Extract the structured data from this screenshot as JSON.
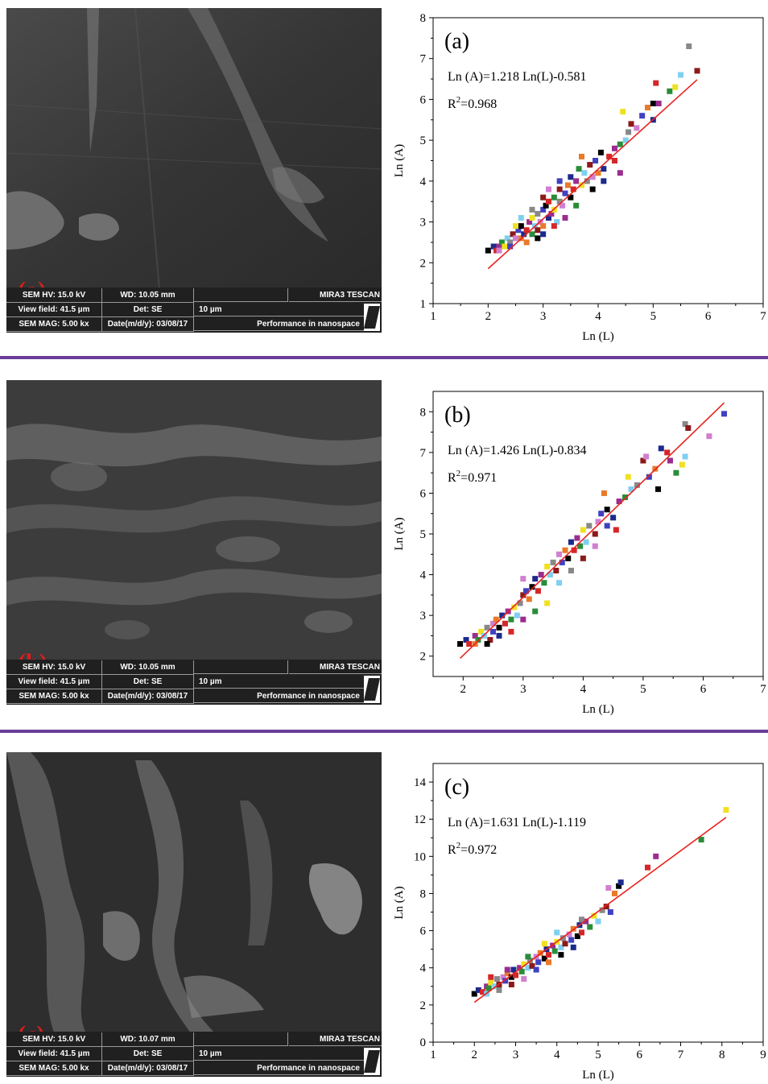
{
  "panels": [
    {
      "letter": "(a)",
      "sem": {
        "hv": "SEM HV: 15.0 kV",
        "wd": "WD: 10.05 mm",
        "brand": "MIRA3 TESCAN",
        "view_field": "View field: 41.5 µm",
        "det": "Det: SE",
        "scale": "10 µm",
        "mag": "SEM MAG: 5.00 kx",
        "date": "Date(m/d/y): 03/08/17",
        "slogan": "Performance in nanospace"
      }
    },
    {
      "letter": "(b)",
      "sem": {
        "hv": "SEM HV: 15.0 kV",
        "wd": "WD: 10.05 mm",
        "brand": "MIRA3 TESCAN",
        "view_field": "View field: 41.5 µm",
        "det": "Det: SE",
        "scale": "10 µm",
        "mag": "SEM MAG: 5.00 kx",
        "date": "Date(m/d/y): 03/08/17",
        "slogan": "Performance in nanospace"
      }
    },
    {
      "letter": "(c)",
      "sem": {
        "hv": "SEM HV: 15.0 kV",
        "wd": "WD: 10.07 mm",
        "brand": "MIRA3 TESCAN",
        "view_field": "View field: 41.5 µm",
        "det": "Det: SE",
        "scale": "10 µm",
        "mag": "SEM MAG: 5.00 kx",
        "date": "Date(m/d/y): 03/08/17",
        "slogan": "Performance in nanospace"
      }
    }
  ],
  "chart_data": [
    {
      "type": "scatter",
      "label": "(a)",
      "xlabel": "Ln (L)",
      "ylabel": "Ln (A)",
      "xlim": [
        1,
        7
      ],
      "ylim": [
        1,
        8
      ],
      "xticks": [
        "1",
        "2",
        "3",
        "4",
        "5",
        "6",
        "7"
      ],
      "yticks": [
        "1",
        "2",
        "3",
        "4",
        "5",
        "6",
        "7",
        "8"
      ],
      "equation": "Ln (A)=1.218 Ln(L)-0.581",
      "r2_prefix": "R",
      "r2_sup": "2",
      "r2_value": "=0.968",
      "fit": {
        "slope": 1.218,
        "intercept": -0.581,
        "x_range": [
          2.0,
          5.8
        ],
        "color": "#e8231f"
      },
      "marker_colors": [
        "#000000",
        "#1c2a8c",
        "#d62728",
        "#9b2d8e",
        "#2a8c3a",
        "#f0e020",
        "#7fd0f0",
        "#888888",
        "#8b1a1a",
        "#d080d0",
        "#4040c0",
        "#e87a2a"
      ],
      "points": [
        [
          2.0,
          2.3
        ],
        [
          2.1,
          2.4
        ],
        [
          2.15,
          2.3
        ],
        [
          2.2,
          2.4
        ],
        [
          2.25,
          2.5
        ],
        [
          2.3,
          2.4
        ],
        [
          2.35,
          2.6
        ],
        [
          2.4,
          2.5
        ],
        [
          2.45,
          2.7
        ],
        [
          2.5,
          2.6
        ],
        [
          2.55,
          2.8
        ],
        [
          2.6,
          2.6
        ],
        [
          2.6,
          2.9
        ],
        [
          2.65,
          2.7
        ],
        [
          2.7,
          2.8
        ],
        [
          2.75,
          3.0
        ],
        [
          2.8,
          2.7
        ],
        [
          2.8,
          3.1
        ],
        [
          2.85,
          2.9
        ],
        [
          2.9,
          3.2
        ],
        [
          2.9,
          2.8
        ],
        [
          2.95,
          3.0
        ],
        [
          3.0,
          3.3
        ],
        [
          3.0,
          2.9
        ],
        [
          3.05,
          3.4
        ],
        [
          3.1,
          3.1
        ],
        [
          3.1,
          3.5
        ],
        [
          3.15,
          3.2
        ],
        [
          3.2,
          3.6
        ],
        [
          3.2,
          3.3
        ],
        [
          3.25,
          3.0
        ],
        [
          3.3,
          3.5
        ],
        [
          3.3,
          3.8
        ],
        [
          3.35,
          3.4
        ],
        [
          3.4,
          3.7
        ],
        [
          3.45,
          3.9
        ],
        [
          3.5,
          3.6
        ],
        [
          3.5,
          4.1
        ],
        [
          3.55,
          3.8
        ],
        [
          3.6,
          4.0
        ],
        [
          3.65,
          4.3
        ],
        [
          3.7,
          3.9
        ],
        [
          3.75,
          4.2
        ],
        [
          3.8,
          4.0
        ],
        [
          3.85,
          4.4
        ],
        [
          3.9,
          4.1
        ],
        [
          3.95,
          4.5
        ],
        [
          4.0,
          4.2
        ],
        [
          4.05,
          4.7
        ],
        [
          4.1,
          4.3
        ],
        [
          4.2,
          4.6
        ],
        [
          4.3,
          4.8
        ],
        [
          4.4,
          4.9
        ],
        [
          4.45,
          5.7
        ],
        [
          4.5,
          5.0
        ],
        [
          4.55,
          5.2
        ],
        [
          4.6,
          5.4
        ],
        [
          4.7,
          5.3
        ],
        [
          4.8,
          5.6
        ],
        [
          4.9,
          5.8
        ],
        [
          5.0,
          5.9
        ],
        [
          5.0,
          5.5
        ],
        [
          5.05,
          6.4
        ],
        [
          5.1,
          5.9
        ],
        [
          5.3,
          6.2
        ],
        [
          5.4,
          6.3
        ],
        [
          5.5,
          6.6
        ],
        [
          5.65,
          7.3
        ],
        [
          5.8,
          6.7
        ],
        [
          2.2,
          2.3
        ],
        [
          2.4,
          2.4
        ],
        [
          2.7,
          2.5
        ],
        [
          2.9,
          2.6
        ],
        [
          3.0,
          2.7
        ],
        [
          3.2,
          2.9
        ],
        [
          3.4,
          3.1
        ],
        [
          3.6,
          3.4
        ],
        [
          2.5,
          2.9
        ],
        [
          2.6,
          3.1
        ],
        [
          2.8,
          3.3
        ],
        [
          3.0,
          3.6
        ],
        [
          3.1,
          3.8
        ],
        [
          3.3,
          4.0
        ],
        [
          3.7,
          4.6
        ],
        [
          3.9,
          3.8
        ],
        [
          4.1,
          4.0
        ],
        [
          4.3,
          4.5
        ],
        [
          4.4,
          4.2
        ]
      ]
    },
    {
      "type": "scatter",
      "label": "(b)",
      "xlabel": "Ln (L)",
      "ylabel": "Ln (A)",
      "xlim": [
        1.5,
        7
      ],
      "ylim": [
        1.5,
        8.5
      ],
      "xticks": [
        "2",
        "3",
        "4",
        "5",
        "6",
        "7"
      ],
      "yticks": [
        "2",
        "3",
        "4",
        "5",
        "6",
        "7",
        "8"
      ],
      "equation": "Ln (A)=1.426 Ln(L)-0.834",
      "r2_prefix": "R",
      "r2_sup": "2",
      "r2_value": "=0.971",
      "fit": {
        "slope": 1.426,
        "intercept": -0.834,
        "x_range": [
          1.95,
          6.35
        ],
        "color": "#e8231f"
      },
      "marker_colors": [
        "#000000",
        "#1c2a8c",
        "#d62728",
        "#9b2d8e",
        "#2a8c3a",
        "#f0e020",
        "#7fd0f0",
        "#888888",
        "#8b1a1a",
        "#d080d0",
        "#4040c0",
        "#e87a2a"
      ],
      "points": [
        [
          1.95,
          2.3
        ],
        [
          2.05,
          2.4
        ],
        [
          2.1,
          2.3
        ],
        [
          2.2,
          2.5
        ],
        [
          2.25,
          2.4
        ],
        [
          2.3,
          2.6
        ],
        [
          2.35,
          2.5
        ],
        [
          2.4,
          2.7
        ],
        [
          2.45,
          2.4
        ],
        [
          2.5,
          2.8
        ],
        [
          2.5,
          2.6
        ],
        [
          2.55,
          2.9
        ],
        [
          2.6,
          2.7
        ],
        [
          2.65,
          3.0
        ],
        [
          2.7,
          2.8
        ],
        [
          2.75,
          3.1
        ],
        [
          2.8,
          2.9
        ],
        [
          2.85,
          3.2
        ],
        [
          2.9,
          3.0
        ],
        [
          2.95,
          3.3
        ],
        [
          3.0,
          3.5
        ],
        [
          3.0,
          3.9
        ],
        [
          3.05,
          3.6
        ],
        [
          3.1,
          3.4
        ],
        [
          3.15,
          3.7
        ],
        [
          3.2,
          3.9
        ],
        [
          3.25,
          3.6
        ],
        [
          3.3,
          4.0
        ],
        [
          3.35,
          3.8
        ],
        [
          3.4,
          4.2
        ],
        [
          3.45,
          4.0
        ],
        [
          3.5,
          4.3
        ],
        [
          3.55,
          4.1
        ],
        [
          3.6,
          4.5
        ],
        [
          3.65,
          4.3
        ],
        [
          3.7,
          4.6
        ],
        [
          3.75,
          4.4
        ],
        [
          3.8,
          4.8
        ],
        [
          3.85,
          4.6
        ],
        [
          3.9,
          4.9
        ],
        [
          3.95,
          4.7
        ],
        [
          4.0,
          5.1
        ],
        [
          4.05,
          4.8
        ],
        [
          4.1,
          5.2
        ],
        [
          4.2,
          5.0
        ],
        [
          4.25,
          5.3
        ],
        [
          4.3,
          5.5
        ],
        [
          4.35,
          6.0
        ],
        [
          4.4,
          5.6
        ],
        [
          4.5,
          5.4
        ],
        [
          4.55,
          5.1
        ],
        [
          4.6,
          5.8
        ],
        [
          4.7,
          5.9
        ],
        [
          4.75,
          6.4
        ],
        [
          4.8,
          6.1
        ],
        [
          4.9,
          6.2
        ],
        [
          5.0,
          6.8
        ],
        [
          5.05,
          6.9
        ],
        [
          5.1,
          6.4
        ],
        [
          5.2,
          6.6
        ],
        [
          5.25,
          6.1
        ],
        [
          5.3,
          7.1
        ],
        [
          5.4,
          7.0
        ],
        [
          5.45,
          6.8
        ],
        [
          5.55,
          6.5
        ],
        [
          5.65,
          6.7
        ],
        [
          5.7,
          6.9
        ],
        [
          5.7,
          7.7
        ],
        [
          5.75,
          7.6
        ],
        [
          6.1,
          7.4
        ],
        [
          6.35,
          7.95
        ],
        [
          2.2,
          2.3
        ],
        [
          2.4,
          2.3
        ],
        [
          2.6,
          2.5
        ],
        [
          2.8,
          2.6
        ],
        [
          3.0,
          2.9
        ],
        [
          3.2,
          3.1
        ],
        [
          3.4,
          3.3
        ],
        [
          3.6,
          3.8
        ],
        [
          3.8,
          4.1
        ],
        [
          4.0,
          4.4
        ],
        [
          4.2,
          4.7
        ],
        [
          4.4,
          5.2
        ]
      ]
    },
    {
      "type": "scatter",
      "label": "(c)",
      "xlabel": "Ln (L)",
      "ylabel": "Ln (A)",
      "xlim": [
        1,
        9
      ],
      "ylim": [
        0,
        15
      ],
      "xticks": [
        "1",
        "2",
        "3",
        "4",
        "5",
        "6",
        "7",
        "8",
        "9"
      ],
      "yticks": [
        "0",
        "2",
        "4",
        "6",
        "8",
        "10",
        "12",
        "14"
      ],
      "equation": "Ln (A)=1.631 Ln(L)-1.119",
      "r2_prefix": "R",
      "r2_sup": "2",
      "r2_value": "=0.972",
      "fit": {
        "slope": 1.631,
        "intercept": -1.119,
        "x_range": [
          2.0,
          8.1
        ],
        "color": "#e8231f"
      },
      "marker_colors": [
        "#000000",
        "#1c2a8c",
        "#d62728",
        "#9b2d8e",
        "#2a8c3a",
        "#f0e020",
        "#7fd0f0",
        "#888888",
        "#8b1a1a",
        "#d080d0",
        "#4040c0",
        "#e87a2a"
      ],
      "points": [
        [
          2.0,
          2.6
        ],
        [
          2.1,
          2.8
        ],
        [
          2.2,
          2.7
        ],
        [
          2.3,
          3.0
        ],
        [
          2.35,
          2.9
        ],
        [
          2.4,
          3.2
        ],
        [
          2.5,
          3.0
        ],
        [
          2.55,
          3.4
        ],
        [
          2.6,
          3.1
        ],
        [
          2.7,
          3.5
        ],
        [
          2.75,
          3.3
        ],
        [
          2.8,
          3.7
        ],
        [
          2.9,
          3.5
        ],
        [
          2.95,
          3.9
        ],
        [
          3.0,
          3.6
        ],
        [
          3.1,
          4.0
        ],
        [
          3.15,
          3.8
        ],
        [
          3.2,
          4.2
        ],
        [
          3.3,
          4.0
        ],
        [
          3.35,
          4.4
        ],
        [
          3.4,
          4.1
        ],
        [
          3.5,
          4.6
        ],
        [
          3.55,
          4.3
        ],
        [
          3.6,
          4.8
        ],
        [
          3.7,
          4.5
        ],
        [
          3.75,
          5.0
        ],
        [
          3.8,
          4.7
        ],
        [
          3.9,
          5.2
        ],
        [
          3.95,
          4.9
        ],
        [
          4.0,
          5.4
        ],
        [
          4.1,
          5.1
        ],
        [
          4.15,
          5.6
        ],
        [
          4.2,
          5.3
        ],
        [
          4.3,
          5.8
        ],
        [
          4.35,
          5.5
        ],
        [
          4.4,
          6.1
        ],
        [
          4.5,
          5.7
        ],
        [
          4.55,
          6.3
        ],
        [
          4.6,
          5.9
        ],
        [
          4.7,
          6.5
        ],
        [
          4.8,
          6.2
        ],
        [
          4.9,
          6.8
        ],
        [
          5.0,
          6.5
        ],
        [
          5.1,
          7.1
        ],
        [
          5.2,
          7.3
        ],
        [
          5.25,
          8.3
        ],
        [
          5.3,
          7.0
        ],
        [
          5.4,
          8.0
        ],
        [
          5.5,
          8.4
        ],
        [
          5.55,
          8.6
        ],
        [
          6.2,
          9.4
        ],
        [
          6.4,
          10.0
        ],
        [
          7.5,
          10.9
        ],
        [
          8.1,
          12.5
        ],
        [
          2.3,
          2.6
        ],
        [
          2.6,
          2.8
        ],
        [
          2.9,
          3.1
        ],
        [
          3.2,
          3.4
        ],
        [
          3.5,
          3.9
        ],
        [
          3.8,
          4.3
        ],
        [
          4.1,
          4.7
        ],
        [
          4.4,
          5.1
        ],
        [
          2.4,
          3.5
        ],
        [
          2.8,
          3.9
        ],
        [
          3.3,
          4.6
        ],
        [
          3.7,
          5.3
        ],
        [
          4.0,
          5.9
        ],
        [
          4.6,
          6.6
        ]
      ]
    }
  ]
}
